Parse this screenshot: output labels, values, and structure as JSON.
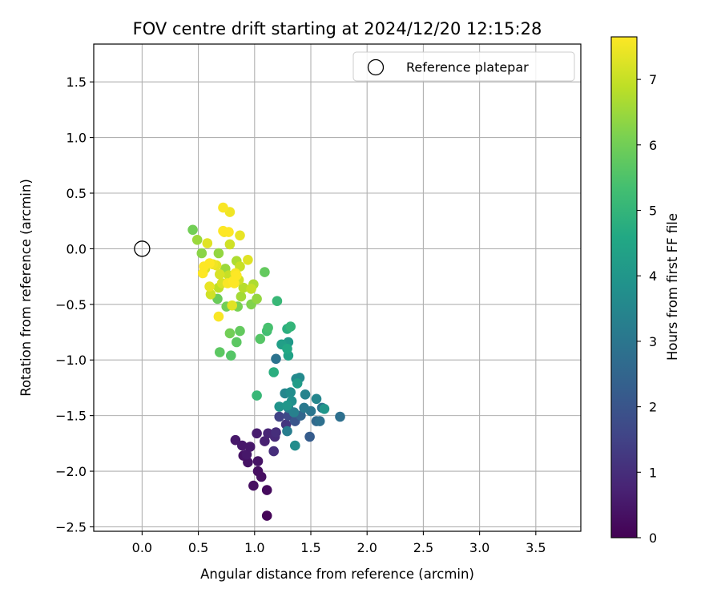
{
  "chart_data": {
    "type": "scatter",
    "title": "FOV centre drift starting at 2024/12/20 12:15:28",
    "xlabel": "Angular distance from reference (arcmin)",
    "ylabel": "Rotation from reference (arcmin)",
    "xlim": [
      -0.43,
      3.9
    ],
    "ylim": [
      -2.54,
      1.84
    ],
    "xticks": [
      "0.0",
      "0.5",
      "1.0",
      "1.5",
      "2.0",
      "2.5",
      "3.0",
      "3.5"
    ],
    "yticks": [
      "−2.5",
      "−2.0",
      "−1.5",
      "−1.0",
      "−0.5",
      "0.0",
      "0.5",
      "1.0",
      "1.5"
    ],
    "grid": true,
    "legend": {
      "position": "top-right",
      "entries": [
        "Reference platepar"
      ]
    },
    "reference_point": {
      "x": 0.0,
      "y": 0.0,
      "marker": "open-circle"
    },
    "colorbar": {
      "label": "Hours from first FF file",
      "range": [
        0,
        7.65
      ],
      "ticks": [
        "0",
        "1",
        "2",
        "3",
        "4",
        "5",
        "6",
        "7"
      ],
      "colormap": "viridis"
    },
    "points": [
      [
        1.11,
        -2.4,
        0.1
      ],
      [
        1.11,
        -2.17,
        0.2
      ],
      [
        1.06,
        -2.05,
        0.3
      ],
      [
        1.03,
        -2.0,
        0.3
      ],
      [
        0.99,
        -2.13,
        0.3
      ],
      [
        0.94,
        -1.92,
        0.4
      ],
      [
        0.9,
        -1.86,
        0.4
      ],
      [
        1.03,
        -1.91,
        0.4
      ],
      [
        0.89,
        -1.77,
        0.5
      ],
      [
        0.83,
        -1.72,
        0.5
      ],
      [
        0.93,
        -1.85,
        0.5
      ],
      [
        0.96,
        -1.78,
        0.5
      ],
      [
        1.02,
        -1.66,
        0.6
      ],
      [
        1.09,
        -1.73,
        0.7
      ],
      [
        1.12,
        -1.66,
        0.8
      ],
      [
        1.18,
        -1.69,
        0.9
      ],
      [
        1.17,
        -1.82,
        1.0
      ],
      [
        1.19,
        -1.65,
        1.0
      ],
      [
        1.28,
        -1.58,
        1.2
      ],
      [
        1.22,
        -1.51,
        1.5
      ],
      [
        1.3,
        -1.5,
        1.7
      ],
      [
        1.36,
        -1.55,
        2.0
      ],
      [
        1.49,
        -1.69,
        2.2
      ],
      [
        1.41,
        -1.5,
        2.5
      ],
      [
        1.55,
        -1.55,
        2.6
      ],
      [
        1.58,
        -1.55,
        2.8
      ],
      [
        1.76,
        -1.51,
        2.8
      ],
      [
        1.6,
        -1.43,
        2.9
      ],
      [
        1.5,
        -1.46,
        3.0
      ],
      [
        1.44,
        -1.43,
        3.1
      ],
      [
        1.19,
        -0.99,
        2.9
      ],
      [
        1.29,
        -1.64,
        3.2
      ],
      [
        1.3,
        -1.43,
        3.2
      ],
      [
        1.35,
        -1.47,
        3.3
      ],
      [
        1.45,
        -1.31,
        3.4
      ],
      [
        1.55,
        -1.35,
        3.5
      ],
      [
        1.27,
        -1.3,
        3.5
      ],
      [
        1.37,
        -1.17,
        3.6
      ],
      [
        1.4,
        -1.16,
        3.6
      ],
      [
        1.32,
        -1.29,
        3.7
      ],
      [
        1.36,
        -1.77,
        3.7
      ],
      [
        1.33,
        -1.37,
        3.8
      ],
      [
        1.22,
        -1.42,
        3.9
      ],
      [
        1.29,
        -1.41,
        4.0
      ],
      [
        1.62,
        -1.44,
        4.0
      ],
      [
        1.3,
        -0.84,
        4.1
      ],
      [
        1.38,
        -1.21,
        4.2
      ],
      [
        1.24,
        -0.86,
        4.3
      ],
      [
        1.3,
        -0.96,
        4.4
      ],
      [
        1.29,
        -0.9,
        4.6
      ],
      [
        1.29,
        -0.72,
        4.8
      ],
      [
        1.17,
        -1.11,
        4.8
      ],
      [
        1.32,
        -0.7,
        5.0
      ],
      [
        1.2,
        -0.47,
        5.1
      ],
      [
        1.02,
        -1.32,
        5.1
      ],
      [
        1.11,
        -0.74,
        5.3
      ],
      [
        1.12,
        -0.71,
        5.4
      ],
      [
        1.05,
        -0.81,
        5.6
      ],
      [
        0.79,
        -0.96,
        5.6
      ],
      [
        0.84,
        -0.84,
        5.7
      ],
      [
        0.69,
        -0.93,
        5.7
      ],
      [
        1.09,
        -0.21,
        5.8
      ],
      [
        0.87,
        -0.74,
        5.8
      ],
      [
        0.67,
        -0.45,
        5.9
      ],
      [
        0.78,
        -0.76,
        6.0
      ],
      [
        0.45,
        0.17,
        6.0
      ],
      [
        0.75,
        -0.52,
        6.0
      ],
      [
        0.85,
        -0.52,
        6.1
      ],
      [
        0.97,
        -0.5,
        6.2
      ],
      [
        0.53,
        -0.04,
        6.3
      ],
      [
        0.68,
        -0.04,
        6.4
      ],
      [
        1.02,
        -0.45,
        6.4
      ],
      [
        0.49,
        0.08,
        6.5
      ],
      [
        0.74,
        -0.18,
        6.5
      ],
      [
        0.88,
        -0.43,
        6.6
      ],
      [
        0.84,
        -0.11,
        6.7
      ],
      [
        0.99,
        -0.32,
        6.7
      ],
      [
        0.83,
        -0.22,
        6.8
      ],
      [
        0.9,
        -0.35,
        6.8
      ],
      [
        0.68,
        -0.35,
        6.9
      ],
      [
        0.77,
        -0.24,
        7.0
      ],
      [
        0.87,
        -0.16,
        7.0
      ],
      [
        0.97,
        -0.36,
        7.0
      ],
      [
        0.86,
        -0.28,
        7.1
      ],
      [
        0.78,
        0.04,
        7.1
      ],
      [
        0.61,
        -0.41,
        7.1
      ],
      [
        0.69,
        -0.23,
        7.2
      ],
      [
        0.56,
        -0.18,
        7.2
      ],
      [
        0.71,
        -0.31,
        7.2
      ],
      [
        0.94,
        -0.1,
        7.3
      ],
      [
        0.8,
        -0.51,
        7.3
      ],
      [
        0.58,
        0.05,
        7.3
      ],
      [
        0.87,
        0.12,
        7.4
      ],
      [
        0.6,
        -0.34,
        7.4
      ],
      [
        0.66,
        -0.15,
        7.4
      ],
      [
        0.78,
        0.33,
        7.5
      ],
      [
        0.73,
        0.15,
        7.5
      ],
      [
        0.63,
        -0.14,
        7.5
      ],
      [
        0.83,
        -0.22,
        7.6
      ],
      [
        0.72,
        0.37,
        7.6
      ],
      [
        0.68,
        -0.61,
        7.6
      ],
      [
        0.76,
        -0.31,
        7.6
      ],
      [
        0.54,
        -0.22,
        7.7
      ],
      [
        0.81,
        -0.29,
        7.7
      ],
      [
        0.72,
        0.16,
        7.7
      ],
      [
        0.6,
        -0.13,
        7.7
      ],
      [
        0.55,
        -0.16,
        7.7
      ],
      [
        0.82,
        -0.31,
        7.7
      ],
      [
        0.84,
        -0.24,
        7.7
      ],
      [
        0.77,
        0.15,
        7.7
      ]
    ]
  }
}
